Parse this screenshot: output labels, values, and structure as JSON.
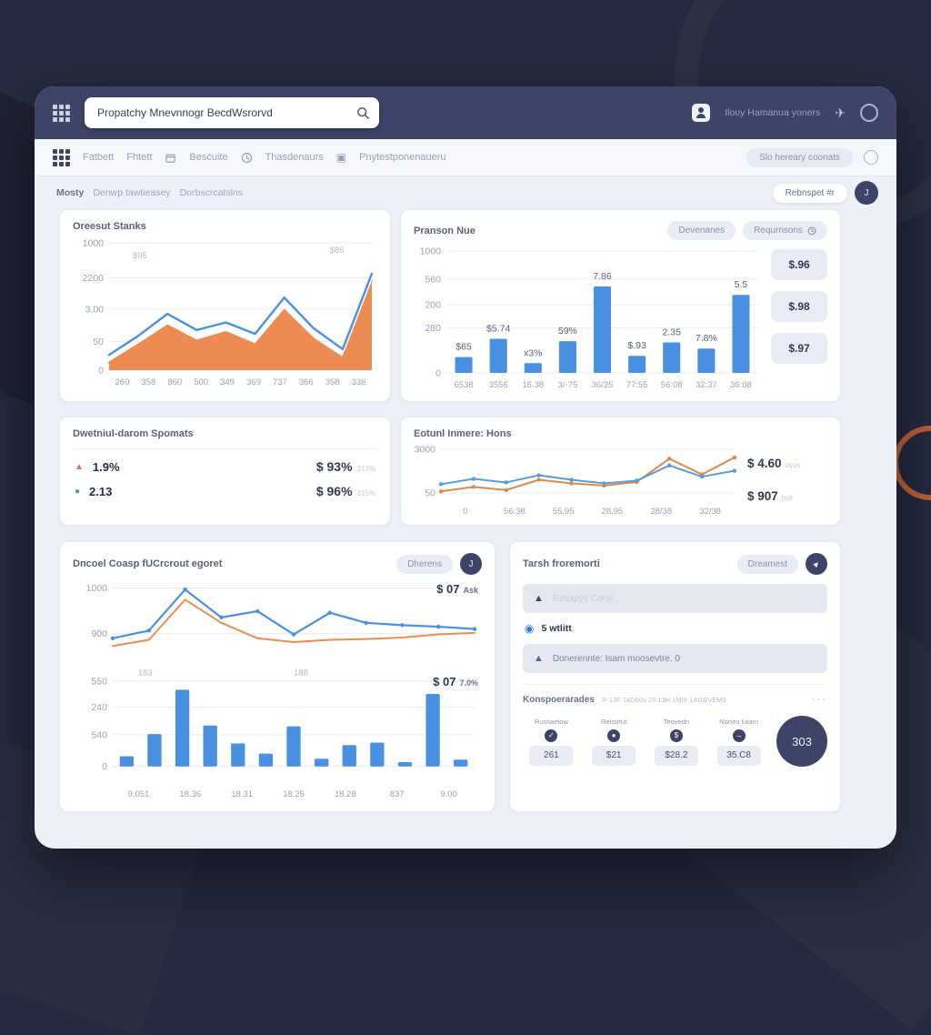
{
  "colors": {
    "accent_blue": "#4a90e2",
    "accent_orange": "#ee8b53",
    "navy": "#3d4468",
    "panel_bg": "#eef0f7"
  },
  "header": {
    "search_value": "Propatchy Mnevnnogr BecdWsrorvd",
    "user_label": "Ilouy Hamanua yoners",
    "send_icon": "✈"
  },
  "nav": {
    "items": [
      "Fatbett",
      "Fhtett",
      "Bescuite",
      "Thasdenaurs",
      "Pnytestponenaueru"
    ],
    "bracket_icon": "▣",
    "right_pill": "Slo hereary coonats"
  },
  "crumbs": [
    "Mosty",
    "Denwp tawtieasey",
    "Dorbscrcatslns"
  ],
  "toolbar": {
    "report_label": "Rebnspet #r",
    "avatar": "J"
  },
  "cards": {
    "overview": {
      "title": "Oreesut Stanks"
    },
    "revenue": {
      "title": "Pranson Nue",
      "buttons": [
        "Devenanes",
        "Requrnsons"
      ],
      "side_values": [
        "$.96",
        "$.98",
        "$.97"
      ]
    },
    "metrics": {
      "title": "Dwetniul-darom Spomats",
      "rows": [
        {
          "icon": "▲",
          "value": "1.9%",
          "amount": "$ 93%",
          "sub": "313%"
        },
        {
          "icon": "●",
          "value": "2.13",
          "amount": "$ 96%",
          "sub": "315%"
        }
      ]
    },
    "earnings": {
      "title": "Eotunl Inmere: Hons",
      "stats": [
        {
          "amount": "$ 4.60",
          "sub": "uvus"
        },
        {
          "amount": "$ 907",
          "sub": "bsk"
        }
      ]
    },
    "account": {
      "title": "Dncoel Coasp fUCrcrout egoret",
      "button": "Dherens",
      "avatar": "J",
      "overlays": [
        {
          "amount": "$ 07",
          "sub": "Ask"
        },
        {
          "amount": "$ 07",
          "sub": "7.0%"
        }
      ]
    },
    "tasks": {
      "title": "Tarsh froremorti",
      "button": "Dreamest",
      "alerts": [
        "Resapys Cerst",
        "Donerennte: Isam moosevtre. 0"
      ],
      "check_item": "5 wtlitt",
      "footer_label": "Konspoerarades",
      "footer_meta": "R-13F 14Db0s 26 13H 1M0r 1AGBVEM3",
      "dots": "···",
      "stats": [
        {
          "label": "Rustiaetow",
          "icon": "✓",
          "value": "261"
        },
        {
          "label": "Retstrtut",
          "icon": "●",
          "value": "$21"
        },
        {
          "label": "Teovedn",
          "icon": "$",
          "value": "$28.2"
        },
        {
          "label": "Nortes lutarn",
          "icon": "→",
          "value": "35.C8"
        }
      ],
      "total": "303"
    }
  },
  "chart_data": {
    "overview_area": {
      "type": "area",
      "padL": 40,
      "padR": 6,
      "padT": 8,
      "padB": 20,
      "yticks": [
        {
          "label": "1000",
          "f": 0.0
        },
        {
          "label": "2200",
          "f": 0.275
        },
        {
          "label": "3.00",
          "f": 0.52
        },
        {
          "label": "50",
          "f": 0.775
        },
        {
          "label": "0",
          "f": 1.0
        }
      ],
      "xlabels": [
        "260",
        "358",
        "860",
        "500",
        "349",
        "369",
        "737",
        "366",
        "358",
        "336"
      ],
      "series": [
        {
          "name": "area-orange",
          "type": "line",
          "fill": true,
          "color": "#ee8b53",
          "region": [
            0.25,
            1.0
          ],
          "values": [
            8,
            27,
            47,
            31,
            40,
            27,
            63,
            33,
            13,
            94
          ]
        },
        {
          "name": "line-blue",
          "type": "line",
          "halo": true,
          "color": "#4a90e2",
          "width": 2.4,
          "region": [
            0.22,
            0.97
          ],
          "values": [
            12,
            32,
            55,
            38,
            46,
            34,
            72,
            40,
            18,
            97
          ]
        }
      ],
      "annotations": [
        {
          "text": "$95",
          "fx": 0.09,
          "fy": 0.12
        },
        {
          "text": "$85",
          "fx": 0.84,
          "fy": 0.08
        }
      ]
    },
    "revenue_bars": {
      "type": "bar",
      "padL": 36,
      "padR": 4,
      "padT": 8,
      "padB": 20,
      "yticks": [
        {
          "label": "1000",
          "f": 0.0
        },
        {
          "label": "560",
          "f": 0.23
        },
        {
          "label": "200",
          "f": 0.44
        },
        {
          "label": "280",
          "f": 0.63
        },
        {
          "label": "0",
          "f": 1.0
        }
      ],
      "xlabels": [
        "6538",
        "3556",
        "16.38",
        "3/-75",
        "36/25",
        "77:55",
        "56:08",
        "32:37",
        "36:08"
      ],
      "series": [
        {
          "name": "bars-blue",
          "type": "bars",
          "color": "#4a90e2",
          "region": [
            0.0,
            1.0
          ],
          "values": [
            13,
            28,
            8,
            26,
            71,
            14,
            25,
            20,
            64
          ],
          "labels": [
            "$65",
            "$5.74",
            "x3%",
            "59%",
            "7.86",
            "$.93",
            "2.35",
            "7.8%",
            "5.5"
          ]
        }
      ]
    },
    "earnings_lines": {
      "type": "line",
      "padL": 30,
      "padR": 6,
      "padT": 6,
      "padB": 18,
      "yticks": [
        {
          "label": "3000",
          "f": 0.05
        },
        {
          "label": "50",
          "f": 0.85
        }
      ],
      "xlabels": [
        "0",
        "56.38",
        "55.95",
        "28.95",
        "28/38",
        "32/38"
      ],
      "series": [
        {
          "name": "orange",
          "type": "line",
          "color": "#d98a4e",
          "width": 2,
          "markers": true,
          "region": [
            0.1,
            0.92
          ],
          "values": [
            12,
            22,
            15,
            38,
            30,
            25,
            33,
            85,
            50,
            88
          ]
        },
        {
          "name": "blue",
          "type": "line",
          "color": "#5b9bd5",
          "width": 2,
          "markers": true,
          "region": [
            0.1,
            0.92
          ],
          "values": [
            28,
            40,
            32,
            48,
            38,
            30,
            36,
            70,
            45,
            58
          ]
        }
      ]
    },
    "account_combined": {
      "type": "line+bar",
      "padL": 44,
      "padR": 8,
      "padT": 6,
      "padB": 22,
      "yticks": [
        {
          "label": "1000",
          "f": 0.03
        },
        {
          "label": "900",
          "f": 0.26
        },
        {
          "label": "550",
          "f": 0.5
        },
        {
          "label": "240",
          "f": 0.63
        },
        {
          "label": "540",
          "f": 0.77
        },
        {
          "label": "0",
          "f": 0.93
        }
      ],
      "xlabels": [
        "9.051",
        "18.36",
        "18.31",
        "18.25",
        "18.28",
        "837",
        "9.00"
      ],
      "series": [
        {
          "name": "orange",
          "type": "line",
          "color": "#ee8b53",
          "width": 2,
          "region": [
            0.03,
            0.42
          ],
          "values": [
            25,
            33,
            85,
            55,
            35,
            30,
            33,
            34,
            36,
            40,
            42
          ]
        },
        {
          "name": "blue",
          "type": "line",
          "color": "#4a90e2",
          "width": 2.2,
          "markers": true,
          "region": [
            0.03,
            0.42
          ],
          "values": [
            35,
            45,
            98,
            62,
            70,
            40,
            68,
            55,
            52,
            50,
            47
          ]
        },
        {
          "name": "bars",
          "type": "bars",
          "color": "#4a90e2",
          "region": [
            0.5,
            0.93
          ],
          "values": [
            12,
            38,
            90,
            48,
            27,
            15,
            47,
            9,
            25,
            28,
            5,
            85,
            8
          ]
        }
      ],
      "annotations": [
        {
          "text": "183",
          "fx": 0.07,
          "fy": 0.47
        },
        {
          "text": "188",
          "fx": 0.5,
          "fy": 0.47
        }
      ]
    }
  }
}
